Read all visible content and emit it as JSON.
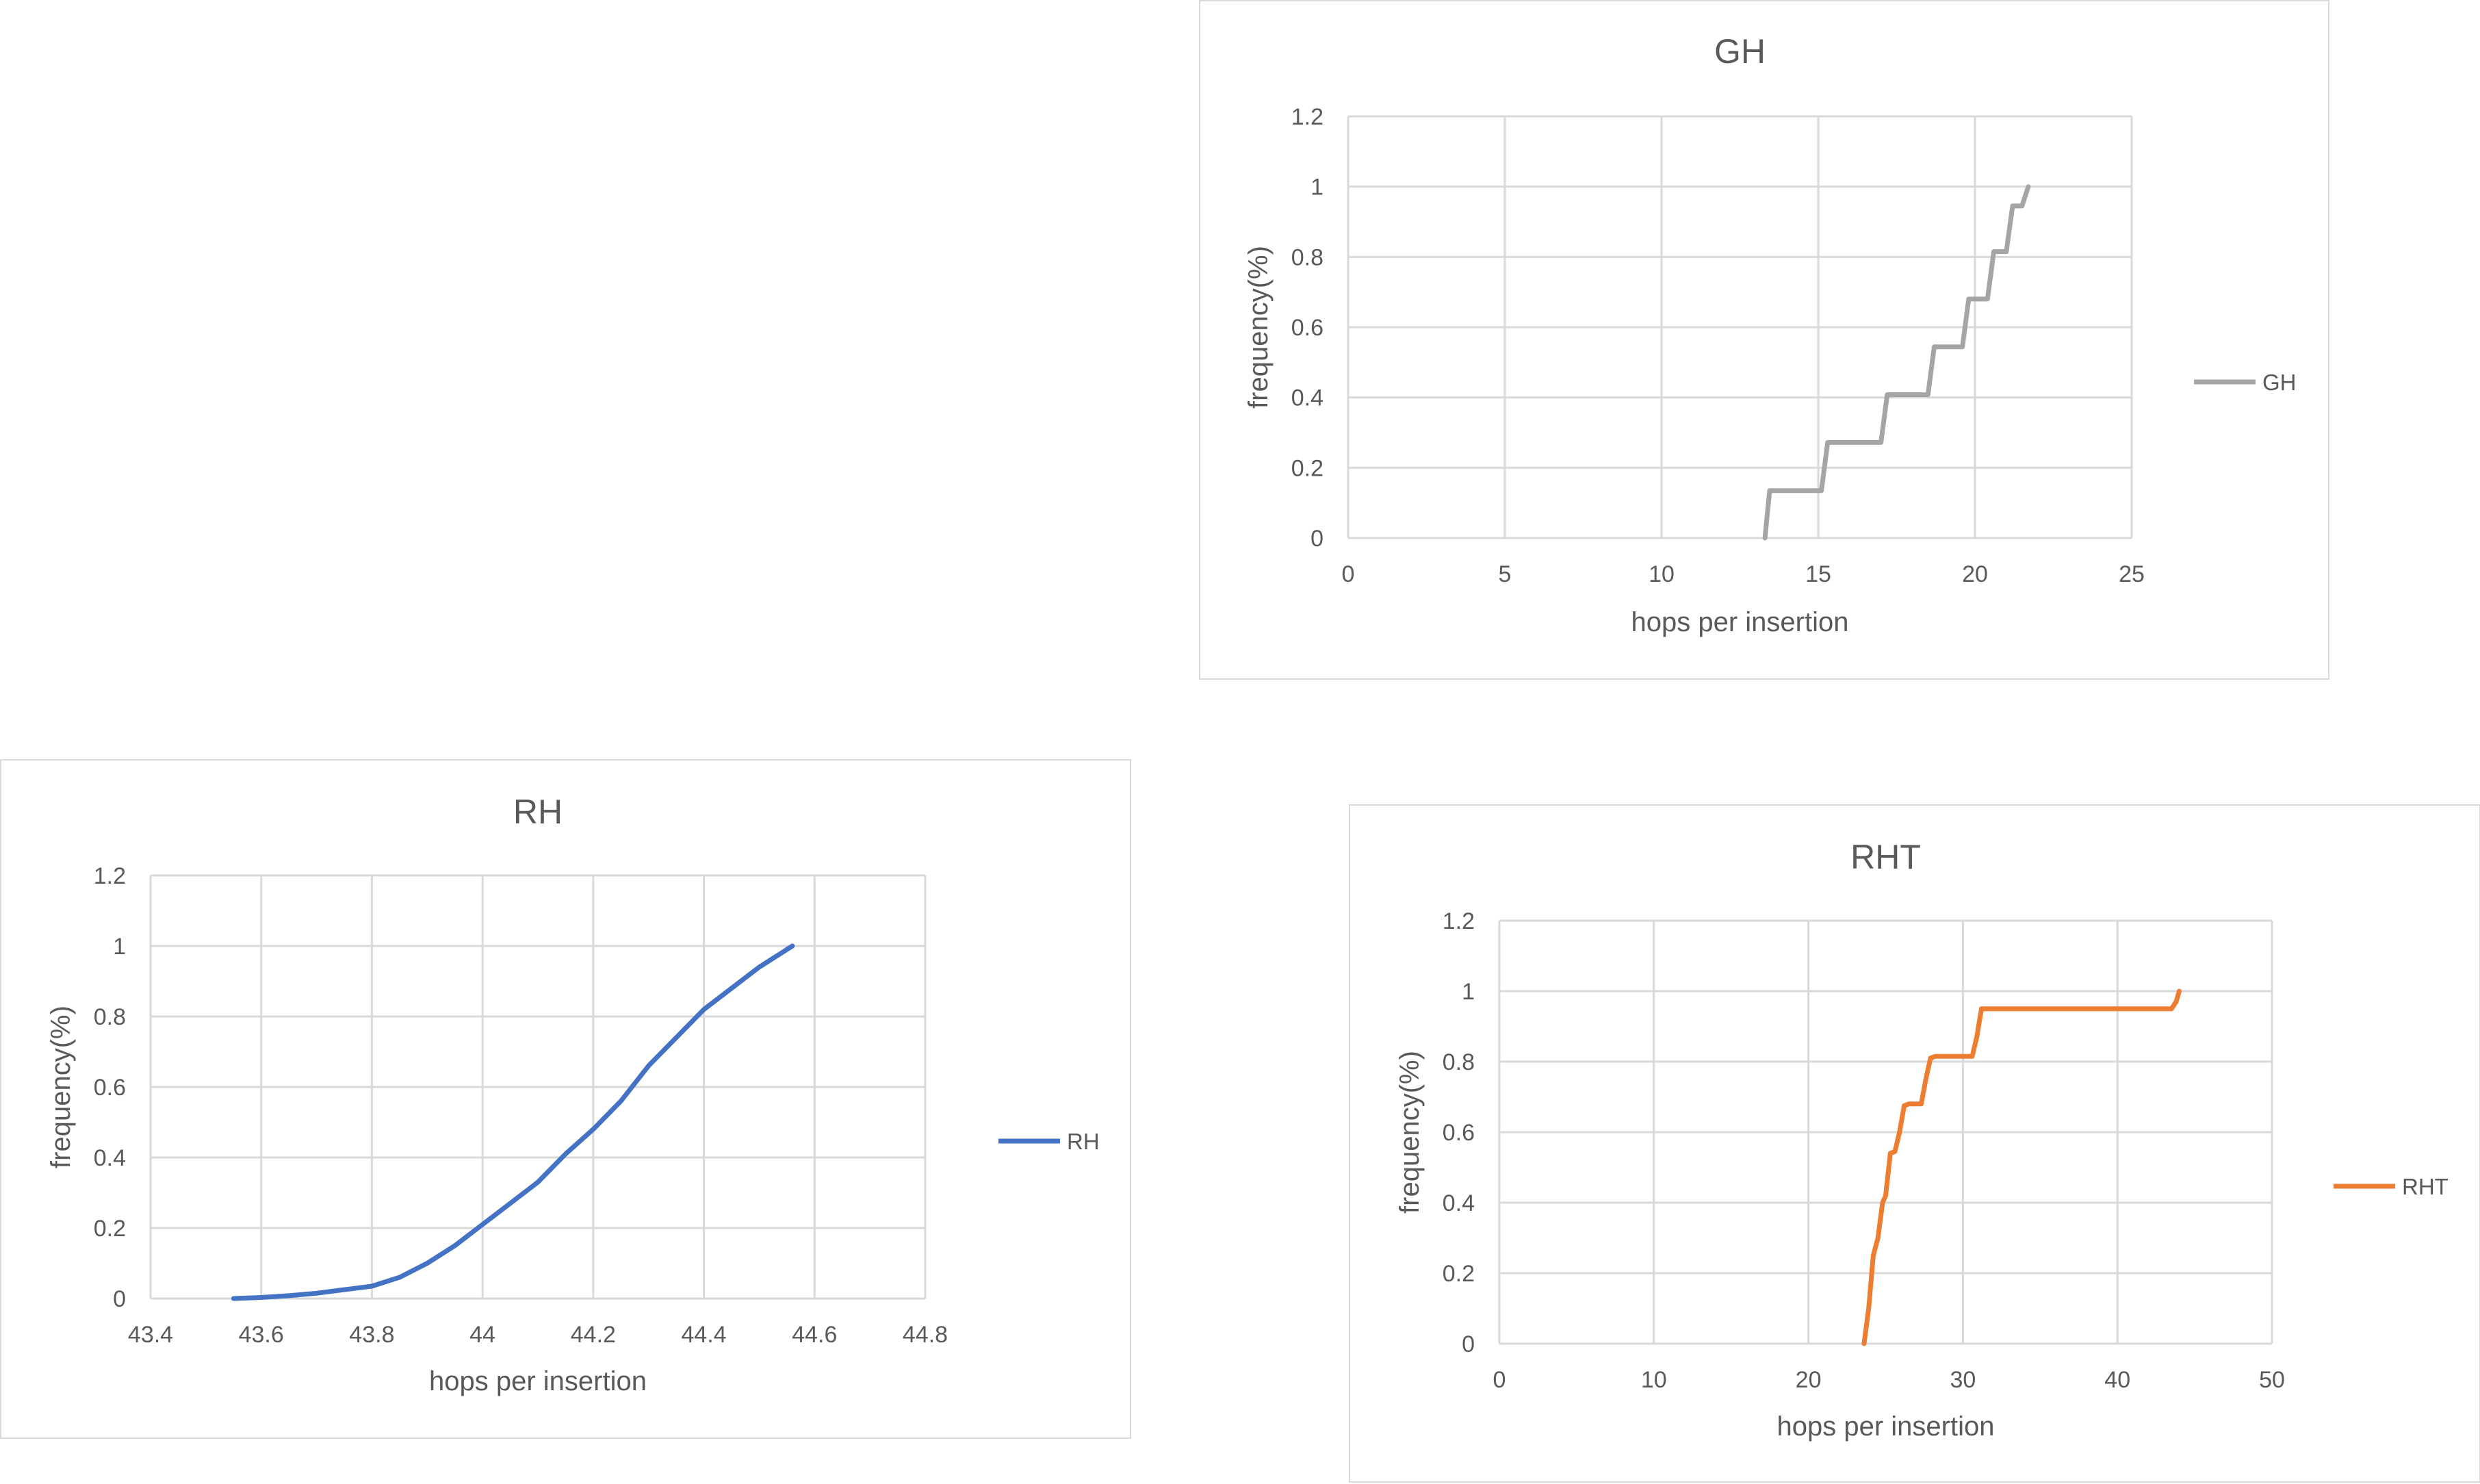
{
  "chart_data": [
    {
      "id": "gh",
      "type": "line",
      "title": "GH",
      "xlabel": "hops per insertion",
      "ylabel": "frequency(%)",
      "xlim": [
        0,
        25
      ],
      "ylim": [
        0,
        1.2
      ],
      "xticks": [
        "0",
        "5",
        "10",
        "15",
        "20",
        "25"
      ],
      "yticks": [
        "0",
        "0.2",
        "0.4",
        "0.6",
        "0.8",
        "1",
        "1.2"
      ],
      "grid": true,
      "legend_position": "right",
      "series": [
        {
          "name": "GH",
          "color": "#a5a5a5",
          "x": [
            13.3,
            13.45,
            15.1,
            15.3,
            17.0,
            17.2,
            18.5,
            18.7,
            19.6,
            19.8,
            20.4,
            20.6,
            21.0,
            21.2,
            21.5,
            21.7
          ],
          "y": [
            0.0,
            0.135,
            0.135,
            0.272,
            0.272,
            0.408,
            0.408,
            0.544,
            0.544,
            0.68,
            0.68,
            0.815,
            0.815,
            0.945,
            0.945,
            1.0
          ]
        }
      ]
    },
    {
      "id": "rh",
      "type": "line",
      "title": "RH",
      "xlabel": "hops per insertion",
      "ylabel": "frequency(%)",
      "xlim": [
        43.4,
        44.8
      ],
      "ylim": [
        0,
        1.2
      ],
      "xticks": [
        "43.4",
        "43.6",
        "43.8",
        "44",
        "44.2",
        "44.4",
        "44.6",
        "44.8"
      ],
      "yticks": [
        "0",
        "0.2",
        "0.4",
        "0.6",
        "0.8",
        "1",
        "1.2"
      ],
      "grid": true,
      "legend_position": "right",
      "series": [
        {
          "name": "RH",
          "color": "#4472c4",
          "x": [
            43.55,
            43.6,
            43.65,
            43.7,
            43.75,
            43.8,
            43.85,
            43.9,
            43.95,
            44.0,
            44.05,
            44.1,
            44.15,
            44.2,
            44.25,
            44.3,
            44.35,
            44.4,
            44.45,
            44.5,
            44.56
          ],
          "y": [
            0.0,
            0.003,
            0.008,
            0.015,
            0.025,
            0.035,
            0.06,
            0.1,
            0.15,
            0.21,
            0.27,
            0.33,
            0.41,
            0.48,
            0.56,
            0.66,
            0.74,
            0.82,
            0.88,
            0.94,
            1.0
          ]
        }
      ]
    },
    {
      "id": "rht",
      "type": "line",
      "title": "RHT",
      "xlabel": "hops per insertion",
      "ylabel": "frequency(%)",
      "xlim": [
        0,
        50
      ],
      "ylim": [
        0,
        1.2
      ],
      "xticks": [
        "0",
        "10",
        "20",
        "30",
        "40",
        "50"
      ],
      "yticks": [
        "0",
        "0.2",
        "0.4",
        "0.6",
        "0.8",
        "1",
        "1.2"
      ],
      "grid": true,
      "legend_position": "right",
      "series": [
        {
          "name": "RHT",
          "color": "#ed7d31",
          "x": [
            23.6,
            23.9,
            24.2,
            24.5,
            24.8,
            25.0,
            25.3,
            25.6,
            25.9,
            26.2,
            26.5,
            27.3,
            27.6,
            27.9,
            28.2,
            30.6,
            30.9,
            31.2,
            43.5,
            43.8,
            44.0
          ],
          "y": [
            0.0,
            0.1,
            0.25,
            0.3,
            0.4,
            0.42,
            0.54,
            0.545,
            0.6,
            0.675,
            0.68,
            0.68,
            0.75,
            0.81,
            0.815,
            0.815,
            0.87,
            0.95,
            0.95,
            0.97,
            1.0
          ]
        }
      ]
    }
  ]
}
